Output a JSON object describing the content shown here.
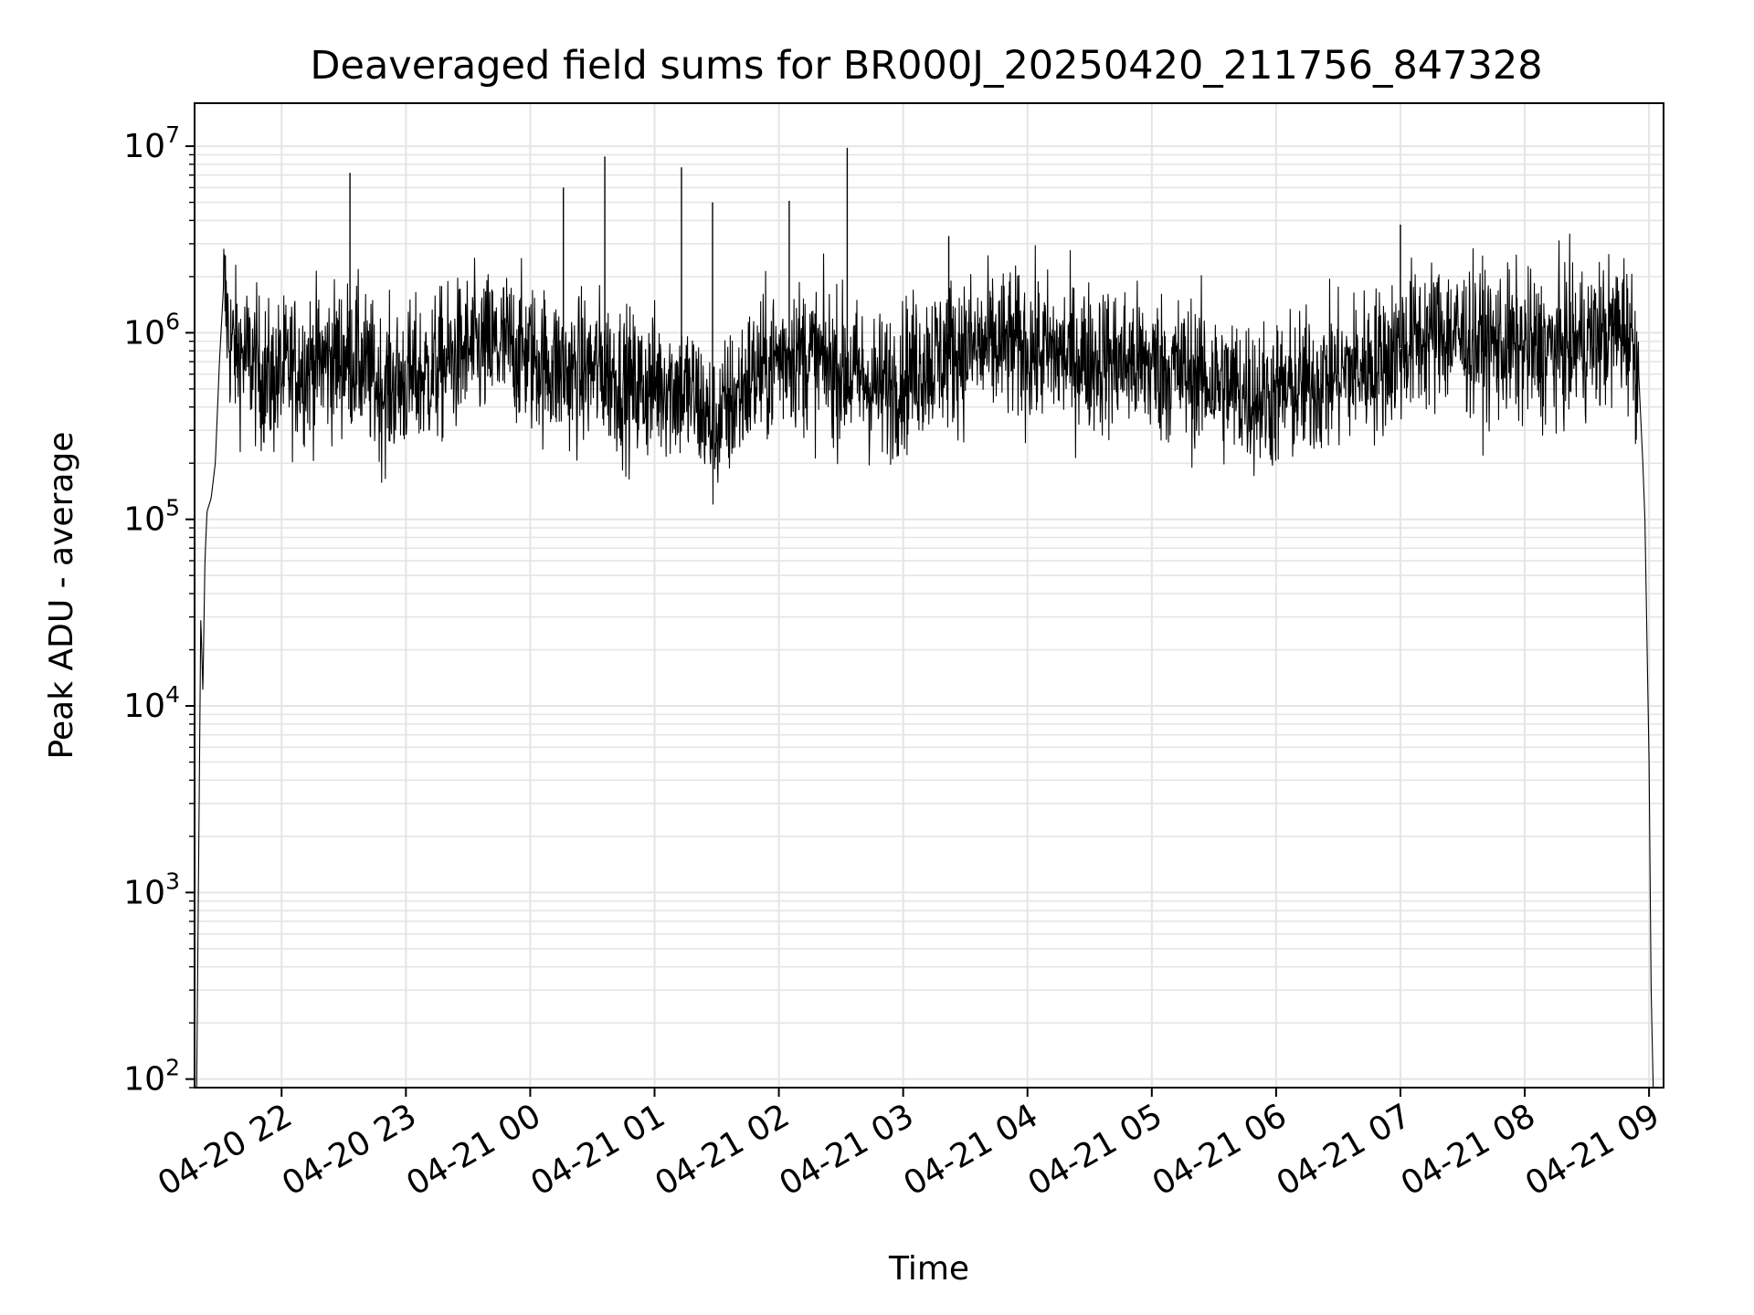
{
  "chart_data": {
    "type": "line",
    "title": "Deaveraged field sums for BR000J_20250420_211756_847328",
    "xlabel": "Time",
    "ylabel": "Peak ADU - average",
    "yscale": "log",
    "ylim": [
      90,
      17000000
    ],
    "xlim": [
      "2025-04-20 21:18",
      "2025-04-21 09:07"
    ],
    "grid": true,
    "line_color": "#000000",
    "grid_color": "#e5e5e5",
    "x_ticks": [
      "04-20 22",
      "04-20 23",
      "04-21 00",
      "04-21 01",
      "04-21 02",
      "04-21 03",
      "04-21 04",
      "04-21 05",
      "04-21 06",
      "04-21 07",
      "04-21 08",
      "04-21 09"
    ],
    "x_tick_times": [
      "2025-04-20 22:00",
      "2025-04-20 23:00",
      "2025-04-21 00:00",
      "2025-04-21 01:00",
      "2025-04-21 02:00",
      "2025-04-21 03:00",
      "2025-04-21 04:00",
      "2025-04-21 05:00",
      "2025-04-21 06:00",
      "2025-04-21 07:00",
      "2025-04-21 08:00",
      "2025-04-21 09:00"
    ],
    "y_ticks": [
      {
        "base": "10",
        "exp": "2",
        "value": 100
      },
      {
        "base": "10",
        "exp": "3",
        "value": 1000
      },
      {
        "base": "10",
        "exp": "4",
        "value": 10000
      },
      {
        "base": "10",
        "exp": "5",
        "value": 100000
      },
      {
        "base": "10",
        "exp": "6",
        "value": 1000000
      },
      {
        "base": "10",
        "exp": "7",
        "value": 10000000
      }
    ],
    "series": [
      {
        "x": [
          "2025-04-20 21:19",
          "2025-04-20 21:21",
          "2025-04-20 21:22",
          "2025-04-20 21:23",
          "2025-04-20 21:24",
          "2025-04-20 21:26",
          "2025-04-20 21:28",
          "2025-04-20 21:30",
          "2025-04-20 21:32",
          "2025-04-20 21:35",
          "2025-04-20 21:38",
          "2025-04-20 21:42",
          "2025-04-20 21:46",
          "2025-04-20 21:50",
          "2025-04-20 21:55",
          "2025-04-20 22:05",
          "2025-04-20 22:20",
          "2025-04-20 22:35",
          "2025-04-20 22:48",
          "2025-04-20 23:10",
          "2025-04-20 23:30",
          "2025-04-20 23:50",
          "2025-04-21 00:05",
          "2025-04-21 00:20",
          "2025-04-21 00:35",
          "2025-04-21 00:50",
          "2025-04-21 01:05",
          "2025-04-21 01:20",
          "2025-04-21 01:28",
          "2025-04-21 01:45",
          "2025-04-21 02:05",
          "2025-04-21 02:20",
          "2025-04-21 02:35",
          "2025-04-21 02:50",
          "2025-04-21 03:10",
          "2025-04-21 03:25",
          "2025-04-21 03:50",
          "2025-04-21 04:20",
          "2025-04-21 04:50",
          "2025-04-21 05:20",
          "2025-04-21 05:40",
          "2025-04-21 05:55",
          "2025-04-21 06:10",
          "2025-04-21 06:30",
          "2025-04-21 06:50",
          "2025-04-21 07:05",
          "2025-04-21 07:20",
          "2025-04-21 07:35",
          "2025-04-21 07:50",
          "2025-04-21 08:10",
          "2025-04-21 08:30",
          "2025-04-21 08:42",
          "2025-04-21 08:48",
          "2025-04-21 08:52",
          "2025-04-21 08:55",
          "2025-04-21 08:57",
          "2025-04-21 08:58",
          "2025-04-21 09:00",
          "2025-04-21 09:01",
          "2025-04-21 09:02",
          "2025-04-21 09:03",
          "2025-04-21 09:04"
        ],
        "y": [
          90,
          30000,
          12000,
          60000,
          110000,
          130000,
          200000,
          700000,
          1800000,
          900000,
          800000,
          750000,
          700000,
          600000,
          550000,
          650000,
          700000,
          750000,
          500000,
          600000,
          800000,
          850000,
          700000,
          600000,
          650000,
          500000,
          550000,
          450000,
          300000,
          550000,
          800000,
          700000,
          600000,
          500000,
          700000,
          800000,
          850000,
          750000,
          700000,
          600000,
          500000,
          450000,
          500000,
          600000,
          700000,
          900000,
          1000000,
          900000,
          850000,
          800000,
          900000,
          1000000,
          1100000,
          900000,
          600000,
          200000,
          100000,
          5000,
          300,
          90,
          90,
          90
        ],
        "peaks": {
          "x": [
            "2025-04-20 22:33",
            "2025-04-21 00:16",
            "2025-04-21 00:36",
            "2025-04-21 01:13",
            "2025-04-21 01:28",
            "2025-04-21 02:05",
            "2025-04-21 02:33",
            "2025-04-21 03:22",
            "2025-04-21 07:00"
          ],
          "y": [
            7200000,
            6000000,
            8800000,
            7700000,
            5000000,
            5100000,
            9800000,
            3300000,
            3800000
          ]
        }
      }
    ]
  }
}
